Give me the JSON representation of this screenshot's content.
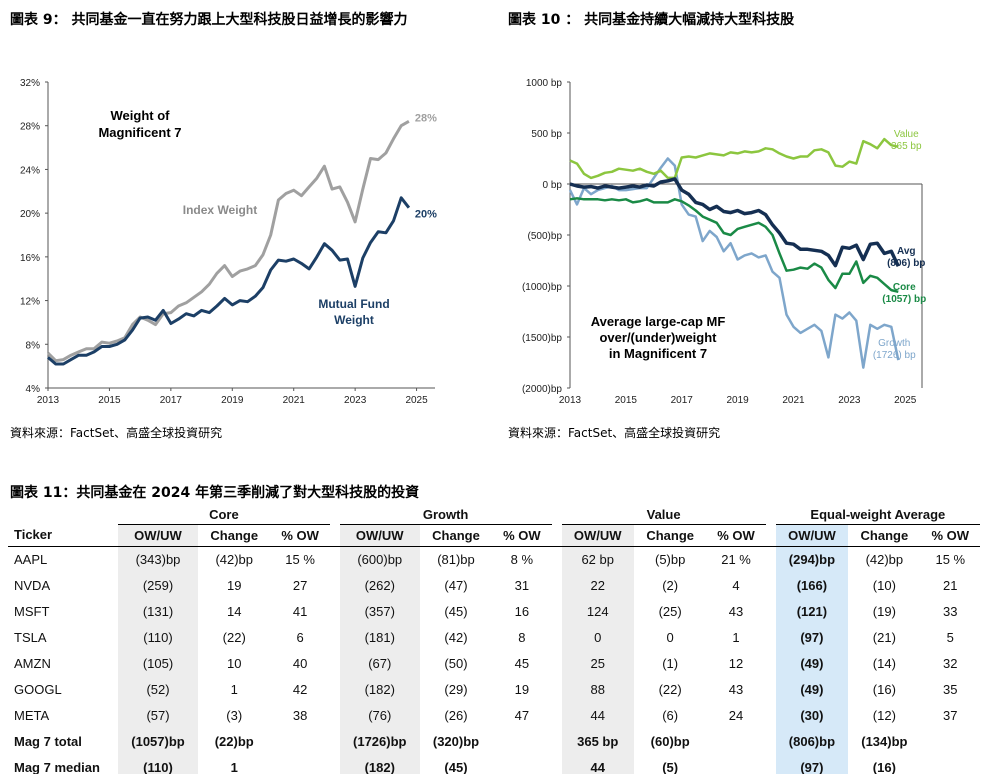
{
  "chart9": {
    "title": "圖表 9： 共同基金一直在努力跟上大型科技股日益增長的影響力",
    "source": "資料來源：FactSet、高盛全球投資研究",
    "chart_data": {
      "type": "line",
      "annotation_title": "Weight of Magnificent 7",
      "ylim": [
        4,
        32
      ],
      "yticks": [
        "4%",
        "8%",
        "12%",
        "16%",
        "20%",
        "24%",
        "28%",
        "32%"
      ],
      "xlim": [
        2013,
        2025.6
      ],
      "xticks": [
        "2013",
        "2015",
        "2017",
        "2019",
        "2021",
        "2023",
        "2025"
      ],
      "series": [
        {
          "name": "Index Weight",
          "end_label": "28%",
          "color": "#a0a0a0",
          "x": [
            2013,
            2013.25,
            2013.5,
            2013.75,
            2014,
            2014.25,
            2014.5,
            2014.75,
            2015,
            2015.25,
            2015.5,
            2015.75,
            2016,
            2016.25,
            2016.5,
            2016.75,
            2017,
            2017.25,
            2017.5,
            2017.75,
            2018,
            2018.25,
            2018.5,
            2018.75,
            2019,
            2019.25,
            2019.5,
            2019.75,
            2020,
            2020.25,
            2020.5,
            2020.75,
            2021,
            2021.25,
            2021.5,
            2021.75,
            2022,
            2022.25,
            2022.5,
            2022.75,
            2023,
            2023.25,
            2023.5,
            2023.75,
            2024,
            2024.25,
            2024.5,
            2024.75
          ],
          "y": [
            7.2,
            6.5,
            6.6,
            7.0,
            7.3,
            7.6,
            7.6,
            8.2,
            8.1,
            8.3,
            8.6,
            9.8,
            10.5,
            10.2,
            9.8,
            10.8,
            10.9,
            11.5,
            11.8,
            12.3,
            12.8,
            13.5,
            14.5,
            15.2,
            14.2,
            14.7,
            14.9,
            15.2,
            16.2,
            18.0,
            21.2,
            21.8,
            22.1,
            21.6,
            22.4,
            23.2,
            24.3,
            22.2,
            22.4,
            21.0,
            19.2,
            22.2,
            25.0,
            24.9,
            25.5,
            26.8,
            28.0,
            28.4
          ]
        },
        {
          "name": "Mutual Fund Weight",
          "end_label": "20%",
          "color": "#1c3f66",
          "x": [
            2013,
            2013.25,
            2013.5,
            2013.75,
            2014,
            2014.25,
            2014.5,
            2014.75,
            2015,
            2015.25,
            2015.5,
            2015.75,
            2016,
            2016.25,
            2016.5,
            2016.75,
            2017,
            2017.25,
            2017.5,
            2017.75,
            2018,
            2018.25,
            2018.5,
            2018.75,
            2019,
            2019.25,
            2019.5,
            2019.75,
            2020,
            2020.25,
            2020.5,
            2020.75,
            2021,
            2021.25,
            2021.5,
            2021.75,
            2022,
            2022.25,
            2022.5,
            2022.75,
            2023,
            2023.25,
            2023.5,
            2023.75,
            2024,
            2024.25,
            2024.5,
            2024.75
          ],
          "y": [
            6.8,
            6.2,
            6.2,
            6.6,
            7.0,
            7.0,
            7.3,
            7.8,
            7.8,
            8.0,
            8.4,
            9.3,
            10.4,
            10.5,
            10.2,
            11.1,
            9.9,
            10.3,
            10.8,
            10.6,
            11.1,
            10.9,
            11.5,
            12.2,
            11.6,
            12.0,
            11.9,
            12.4,
            13.2,
            14.8,
            15.7,
            15.6,
            15.8,
            15.4,
            14.9,
            16.0,
            17.2,
            16.6,
            15.7,
            15.8,
            13.3,
            15.9,
            17.3,
            18.3,
            18.2,
            19.3,
            21.4,
            20.5
          ]
        }
      ]
    }
  },
  "chart10": {
    "title": "圖表 10 ： 共同基金持續大幅減持大型科技股",
    "source": "資料來源：FactSet、高盛全球投資研究",
    "chart_data": {
      "type": "line",
      "annotation_title": "Average large-cap MF over/(under)weight in Magnificent 7",
      "ylim": [
        -2000,
        1000
      ],
      "yticks": [
        "(2000)bp",
        "(1500)bp",
        "(1000)bp",
        "(500)bp",
        "0 bp",
        "500 bp",
        "1000 bp"
      ],
      "xlim": [
        2013,
        2025.6
      ],
      "xticks": [
        "2013",
        "2015",
        "2017",
        "2019",
        "2021",
        "2023",
        "2025"
      ],
      "series": [
        {
          "name": "Value",
          "end_label": "365 bp",
          "color": "#8cc63f",
          "x": [
            2013,
            2013.25,
            2013.5,
            2013.75,
            2014,
            2014.25,
            2014.5,
            2014.75,
            2015,
            2015.25,
            2015.5,
            2015.75,
            2016,
            2016.25,
            2016.5,
            2016.75,
            2017,
            2017.25,
            2017.5,
            2017.75,
            2018,
            2018.25,
            2018.5,
            2018.75,
            2019,
            2019.25,
            2019.5,
            2019.75,
            2020,
            2020.25,
            2020.5,
            2020.75,
            2021,
            2021.25,
            2021.5,
            2021.75,
            2022,
            2022.25,
            2022.5,
            2022.75,
            2023,
            2023.25,
            2023.5,
            2023.75,
            2024,
            2024.25,
            2024.5,
            2024.75
          ],
          "y": [
            230,
            200,
            100,
            60,
            80,
            110,
            120,
            150,
            140,
            130,
            150,
            120,
            100,
            130,
            60,
            60,
            260,
            270,
            260,
            280,
            300,
            290,
            280,
            310,
            300,
            320,
            310,
            320,
            350,
            340,
            300,
            270,
            250,
            270,
            270,
            330,
            340,
            310,
            180,
            170,
            220,
            200,
            420,
            390,
            350,
            440,
            380,
            365
          ]
        },
        {
          "name": "Avg",
          "end_label": "(806) bp",
          "color": "#152f52",
          "x": [
            2013,
            2013.25,
            2013.5,
            2013.75,
            2014,
            2014.25,
            2014.5,
            2014.75,
            2015,
            2015.25,
            2015.5,
            2015.75,
            2016,
            2016.25,
            2016.5,
            2016.75,
            2017,
            2017.25,
            2017.5,
            2017.75,
            2018,
            2018.25,
            2018.5,
            2018.75,
            2019,
            2019.25,
            2019.5,
            2019.75,
            2020,
            2020.25,
            2020.5,
            2020.75,
            2021,
            2021.25,
            2021.5,
            2021.75,
            2022,
            2022.25,
            2022.5,
            2022.75,
            2023,
            2023.25,
            2023.5,
            2023.75,
            2024,
            2024.25,
            2024.5,
            2024.75
          ],
          "y": [
            0,
            -20,
            -30,
            -25,
            -40,
            -20,
            -30,
            -40,
            -30,
            -20,
            -30,
            -10,
            -20,
            20,
            30,
            50,
            -60,
            -100,
            -180,
            -200,
            -250,
            -220,
            -270,
            -280,
            -260,
            -290,
            -280,
            -260,
            -300,
            -400,
            -480,
            -580,
            -590,
            -640,
            -640,
            -650,
            -660,
            -700,
            -800,
            -620,
            -630,
            -600,
            -740,
            -590,
            -580,
            -680,
            -660,
            -806
          ]
        },
        {
          "name": "Core",
          "end_label": "(1057) bp",
          "color": "#1a8a46",
          "x": [
            2013,
            2013.25,
            2013.5,
            2013.75,
            2014,
            2014.25,
            2014.5,
            2014.75,
            2015,
            2015.25,
            2015.5,
            2015.75,
            2016,
            2016.25,
            2016.5,
            2016.75,
            2017,
            2017.25,
            2017.5,
            2017.75,
            2018,
            2018.25,
            2018.5,
            2018.75,
            2019,
            2019.25,
            2019.5,
            2019.75,
            2020,
            2020.25,
            2020.5,
            2020.75,
            2021,
            2021.25,
            2021.5,
            2021.75,
            2022,
            2022.25,
            2022.5,
            2022.75,
            2023,
            2023.25,
            2023.5,
            2023.75,
            2024,
            2024.25,
            2024.5,
            2024.75
          ],
          "y": [
            -150,
            -140,
            -150,
            -150,
            -150,
            -160,
            -150,
            -160,
            -150,
            -180,
            -170,
            -150,
            -180,
            -180,
            -180,
            -150,
            -170,
            -210,
            -260,
            -320,
            -350,
            -380,
            -480,
            -500,
            -440,
            -420,
            -400,
            -380,
            -420,
            -500,
            -680,
            -850,
            -840,
            -820,
            -830,
            -780,
            -820,
            -940,
            -1020,
            -880,
            -880,
            -760,
            -970,
            -900,
            -920,
            -980,
            -1040,
            -1057
          ]
        },
        {
          "name": "Growth",
          "end_label": "(1726) bp",
          "color": "#7ea6cb",
          "x": [
            2013,
            2013.25,
            2013.5,
            2013.75,
            2014,
            2014.25,
            2014.5,
            2014.75,
            2015,
            2015.25,
            2015.5,
            2015.75,
            2016,
            2016.25,
            2016.5,
            2016.75,
            2017,
            2017.25,
            2017.5,
            2017.75,
            2018,
            2018.25,
            2018.5,
            2018.75,
            2019,
            2019.25,
            2019.5,
            2019.75,
            2020,
            2020.25,
            2020.5,
            2020.75,
            2021,
            2021.25,
            2021.5,
            2021.75,
            2022,
            2022.25,
            2022.5,
            2022.75,
            2023,
            2023.25,
            2023.5,
            2023.75,
            2024,
            2024.25,
            2024.5,
            2024.75
          ],
          "y": [
            -60,
            -200,
            -40,
            -100,
            -60,
            -40,
            -20,
            -60,
            -60,
            -50,
            -40,
            -40,
            60,
            160,
            250,
            180,
            -200,
            -300,
            -320,
            -560,
            -460,
            -520,
            -660,
            -580,
            -740,
            -700,
            -680,
            -720,
            -700,
            -860,
            -920,
            -1280,
            -1400,
            -1460,
            -1420,
            -1380,
            -1440,
            -1700,
            -1280,
            -1320,
            -1260,
            -1340,
            -1800,
            -1380,
            -1420,
            -1380,
            -1400,
            -1726
          ]
        }
      ]
    }
  },
  "table": {
    "title": "圖表 11：共同基金在 2024 年第三季削減了對大型科技股的投資",
    "groups": [
      "Core",
      "Growth",
      "Value",
      "Equal-weight Average"
    ],
    "headers": [
      "Ticker",
      "OW/UW",
      "Change",
      "% OW",
      "OW/UW",
      "Change",
      "% OW",
      "OW/UW",
      "Change",
      "% OW",
      "OW/UW",
      "Change",
      "% OW"
    ],
    "rows": [
      [
        "AAPL",
        "(343)bp",
        "(42)bp",
        "15 %",
        "(600)bp",
        "(81)bp",
        "8 %",
        "62 bp",
        "(5)bp",
        "21 %",
        "(294)bp",
        "(42)bp",
        "15 %"
      ],
      [
        "NVDA",
        "(259)",
        "19",
        "27",
        "(262)",
        "(47)",
        "31",
        "22",
        "(2)",
        "4",
        "(166)",
        "(10)",
        "21"
      ],
      [
        "MSFT",
        "(131)",
        "14",
        "41",
        "(357)",
        "(45)",
        "16",
        "124",
        "(25)",
        "43",
        "(121)",
        "(19)",
        "33"
      ],
      [
        "TSLA",
        "(110)",
        "(22)",
        "6",
        "(181)",
        "(42)",
        "8",
        "0",
        "0",
        "1",
        "(97)",
        "(21)",
        "5"
      ],
      [
        "AMZN",
        "(105)",
        "10",
        "40",
        "(67)",
        "(50)",
        "45",
        "25",
        "(1)",
        "12",
        "(49)",
        "(14)",
        "32"
      ],
      [
        "GOOGL",
        "(52)",
        "1",
        "42",
        "(182)",
        "(29)",
        "19",
        "88",
        "(22)",
        "43",
        "(49)",
        "(16)",
        "35"
      ],
      [
        "META",
        "(57)",
        "(3)",
        "38",
        "(76)",
        "(26)",
        "47",
        "44",
        "(6)",
        "24",
        "(30)",
        "(12)",
        "37"
      ]
    ],
    "totals": [
      [
        "Mag 7 total",
        "(1057)bp",
        "(22)bp",
        "",
        "(1726)bp",
        "(320)bp",
        "",
        "365 bp",
        "(60)bp",
        "",
        "(806)bp",
        "(134)bp",
        ""
      ],
      [
        "Mag 7 median",
        "(110)",
        "1",
        "",
        "(182)",
        "(45)",
        "",
        "44",
        "(5)",
        "",
        "(97)",
        "(16)",
        ""
      ]
    ]
  }
}
